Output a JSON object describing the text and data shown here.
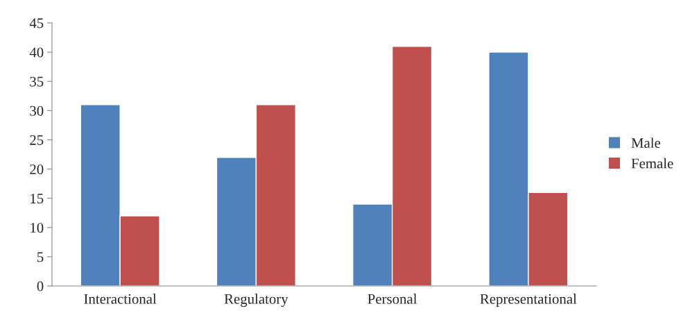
{
  "chart_data": {
    "type": "bar",
    "categories": [
      "Interactional",
      "Regulatory",
      "Personal",
      "Representational"
    ],
    "series": [
      {
        "name": "Male",
        "color": "#4f81bd",
        "values": [
          31,
          22,
          14,
          40
        ]
      },
      {
        "name": "Female",
        "color": "#c0504d",
        "values": [
          12,
          31,
          41,
          16
        ]
      }
    ],
    "ylim": [
      0,
      45
    ],
    "yticks": [
      0,
      5,
      10,
      15,
      20,
      25,
      30,
      35,
      40,
      45
    ],
    "grid": false,
    "legend": "right"
  }
}
